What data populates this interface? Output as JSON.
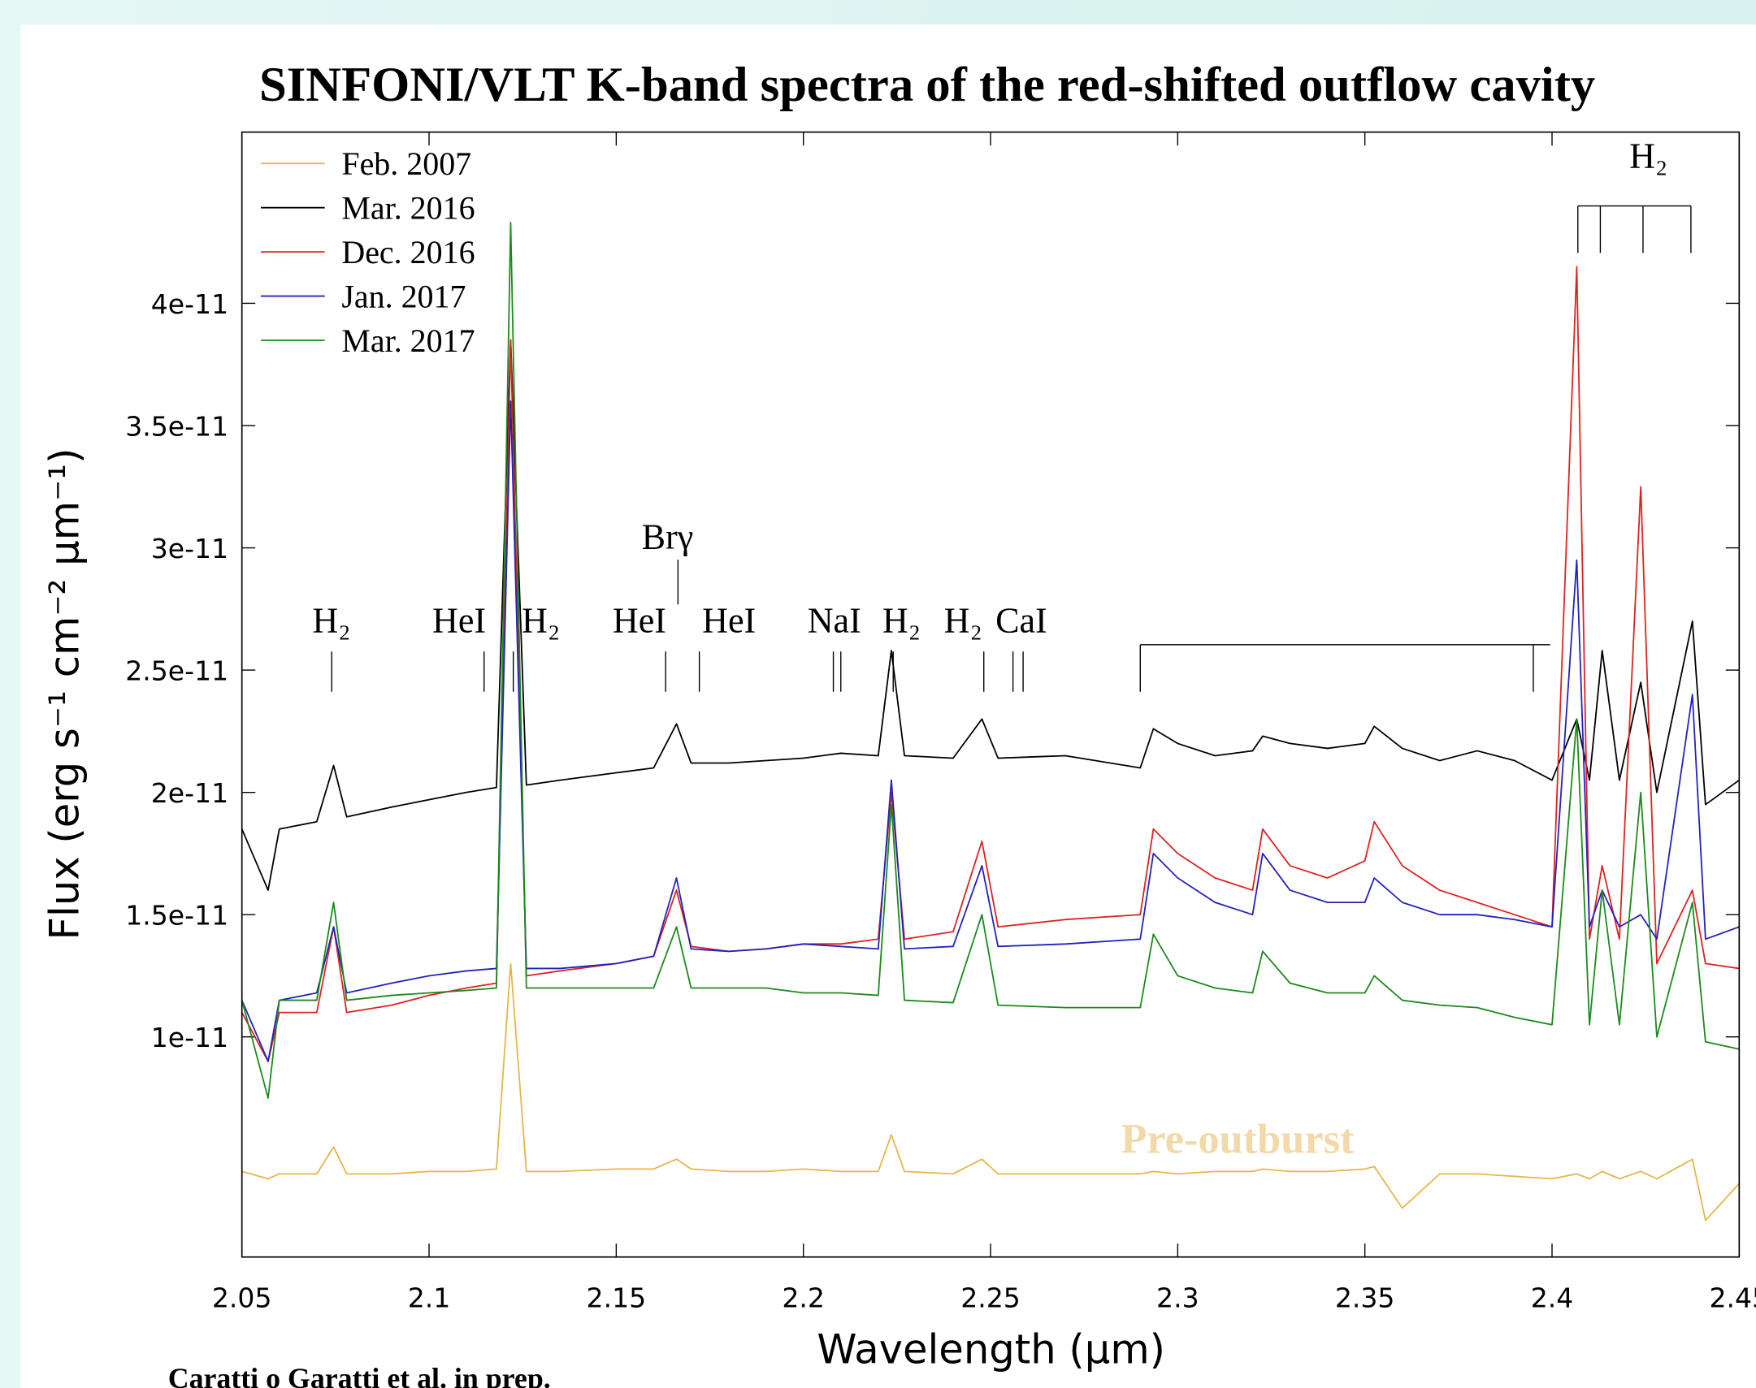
{
  "chart_data": {
    "type": "line",
    "title": "SINFONI/VLT K-band spectra of the red-shifted outflow cavity",
    "xlabel": "Wavelength (μm)",
    "ylabel": "Flux (erg s⁻¹ cm⁻² μm⁻¹)",
    "credit": "Caratti o Garatti et al. in prep.",
    "note": "Pre-outburst",
    "legend": "upper left",
    "xlim": [
      2.05,
      2.45
    ],
    "ylim": [
      1e-12,
      4.7e-11
    ],
    "xticks": [
      2.05,
      2.1,
      2.15,
      2.2,
      2.25,
      2.3,
      2.35,
      2.4,
      2.45
    ],
    "yticks": [
      1e-11,
      1.5e-11,
      2e-11,
      2.5e-11,
      3e-11,
      3.5e-11,
      4e-11
    ],
    "x": [
      2.05,
      2.057,
      2.06,
      2.07,
      2.0745,
      2.078,
      2.09,
      2.1,
      2.11,
      2.118,
      2.1218,
      2.126,
      2.135,
      2.15,
      2.16,
      2.1661,
      2.17,
      2.18,
      2.19,
      2.2,
      2.21,
      2.22,
      2.2235,
      2.227,
      2.24,
      2.2477,
      2.252,
      2.27,
      2.29,
      2.2935,
      2.3,
      2.31,
      2.32,
      2.3227,
      2.33,
      2.34,
      2.35,
      2.3525,
      2.36,
      2.37,
      2.38,
      2.39,
      2.4,
      2.4066,
      2.41,
      2.4134,
      2.418,
      2.4237,
      2.428,
      2.4375,
      2.441,
      2.45
    ],
    "series": [
      {
        "name": "Feb. 2007",
        "color": "#e6b54a",
        "values": [
          4.5e-12,
          4.2e-12,
          4.4e-12,
          4.4e-12,
          5.5e-12,
          4.4e-12,
          4.4e-12,
          4.5e-12,
          4.5e-12,
          4.6e-12,
          1.3e-11,
          4.5e-12,
          4.5e-12,
          4.6e-12,
          4.6e-12,
          5e-12,
          4.6e-12,
          4.5e-12,
          4.5e-12,
          4.6e-12,
          4.5e-12,
          4.5e-12,
          6e-12,
          4.5e-12,
          4.4e-12,
          5e-12,
          4.4e-12,
          4.4e-12,
          4.4e-12,
          4.5e-12,
          4.4e-12,
          4.5e-12,
          4.5e-12,
          4.6e-12,
          4.5e-12,
          4.5e-12,
          4.6e-12,
          4.7e-12,
          3e-12,
          4.4e-12,
          4.4e-12,
          4.3e-12,
          4.2e-12,
          4.4e-12,
          4.2e-12,
          4.5e-12,
          4.2e-12,
          4.5e-12,
          4.2e-12,
          5e-12,
          2.5e-12,
          4e-12
        ]
      },
      {
        "name": "Mar. 2016",
        "color": "#000000",
        "values": [
          1.85e-11,
          1.6e-11,
          1.85e-11,
          1.88e-11,
          2.11e-11,
          1.9e-11,
          1.94e-11,
          1.97e-11,
          2e-11,
          2.02e-11,
          3.85e-11,
          2.03e-11,
          2.05e-11,
          2.08e-11,
          2.1e-11,
          2.28e-11,
          2.12e-11,
          2.12e-11,
          2.13e-11,
          2.14e-11,
          2.16e-11,
          2.15e-11,
          2.58e-11,
          2.15e-11,
          2.14e-11,
          2.3e-11,
          2.14e-11,
          2.15e-11,
          2.1e-11,
          2.26e-11,
          2.2e-11,
          2.15e-11,
          2.17e-11,
          2.23e-11,
          2.2e-11,
          2.18e-11,
          2.2e-11,
          2.27e-11,
          2.18e-11,
          2.13e-11,
          2.17e-11,
          2.13e-11,
          2.05e-11,
          2.3e-11,
          2.05e-11,
          2.58e-11,
          2.05e-11,
          2.45e-11,
          2e-11,
          2.7e-11,
          1.95e-11,
          2.05e-11
        ]
      },
      {
        "name": "Dec. 2016",
        "color": "#dd2222",
        "values": [
          1.1e-11,
          9e-12,
          1.1e-11,
          1.1e-11,
          1.45e-11,
          1.1e-11,
          1.13e-11,
          1.17e-11,
          1.2e-11,
          1.22e-11,
          3.85e-11,
          1.25e-11,
          1.27e-11,
          1.3e-11,
          1.33e-11,
          1.6e-11,
          1.37e-11,
          1.35e-11,
          1.36e-11,
          1.38e-11,
          1.38e-11,
          1.4e-11,
          2e-11,
          1.4e-11,
          1.43e-11,
          1.8e-11,
          1.45e-11,
          1.48e-11,
          1.5e-11,
          1.85e-11,
          1.75e-11,
          1.65e-11,
          1.6e-11,
          1.85e-11,
          1.7e-11,
          1.65e-11,
          1.72e-11,
          1.88e-11,
          1.7e-11,
          1.6e-11,
          1.55e-11,
          1.5e-11,
          1.45e-11,
          4.15e-11,
          1.4e-11,
          1.7e-11,
          1.4e-11,
          3.25e-11,
          1.3e-11,
          1.6e-11,
          1.3e-11,
          1.28e-11
        ]
      },
      {
        "name": "Jan. 2017",
        "color": "#2222bb",
        "values": [
          1.15e-11,
          9e-12,
          1.15e-11,
          1.18e-11,
          1.45e-11,
          1.18e-11,
          1.22e-11,
          1.25e-11,
          1.27e-11,
          1.28e-11,
          3.6e-11,
          1.28e-11,
          1.28e-11,
          1.3e-11,
          1.33e-11,
          1.65e-11,
          1.36e-11,
          1.35e-11,
          1.36e-11,
          1.38e-11,
          1.37e-11,
          1.36e-11,
          2.05e-11,
          1.36e-11,
          1.37e-11,
          1.7e-11,
          1.37e-11,
          1.38e-11,
          1.4e-11,
          1.75e-11,
          1.65e-11,
          1.55e-11,
          1.5e-11,
          1.75e-11,
          1.6e-11,
          1.55e-11,
          1.55e-11,
          1.65e-11,
          1.55e-11,
          1.5e-11,
          1.5e-11,
          1.48e-11,
          1.45e-11,
          2.95e-11,
          1.45e-11,
          1.6e-11,
          1.45e-11,
          1.5e-11,
          1.4e-11,
          2.4e-11,
          1.4e-11,
          1.45e-11
        ]
      },
      {
        "name": "Mar. 2017",
        "color": "#1b8a1b",
        "values": [
          1.15e-11,
          7.5e-12,
          1.15e-11,
          1.15e-11,
          1.55e-11,
          1.15e-11,
          1.17e-11,
          1.18e-11,
          1.19e-11,
          1.2e-11,
          4.33e-11,
          1.2e-11,
          1.2e-11,
          1.2e-11,
          1.2e-11,
          1.45e-11,
          1.2e-11,
          1.2e-11,
          1.2e-11,
          1.18e-11,
          1.18e-11,
          1.17e-11,
          1.95e-11,
          1.15e-11,
          1.14e-11,
          1.5e-11,
          1.13e-11,
          1.12e-11,
          1.12e-11,
          1.42e-11,
          1.25e-11,
          1.2e-11,
          1.18e-11,
          1.35e-11,
          1.22e-11,
          1.18e-11,
          1.18e-11,
          1.25e-11,
          1.15e-11,
          1.13e-11,
          1.12e-11,
          1.08e-11,
          1.05e-11,
          2.3e-11,
          1.05e-11,
          1.6e-11,
          1.05e-11,
          2e-11,
          1e-11,
          1.55e-11,
          9.8e-12,
          9.5e-12
        ]
      }
    ],
    "annotations": [
      {
        "text": "H₂",
        "x": [
          2.074
        ]
      },
      {
        "text": "HeI",
        "x": [
          2.1147
        ]
      },
      {
        "text": "H₂",
        "x": [
          2.1225
        ]
      },
      {
        "text": "HeI",
        "x": [
          2.1632
        ]
      },
      {
        "text": "Brγ",
        "x": [
          2.1665
        ]
      },
      {
        "text": "HeI",
        "x": [
          2.1722
        ]
      },
      {
        "text": "NaI",
        "x": [
          2.208,
          2.21
        ]
      },
      {
        "text": "H₂",
        "x": [
          2.224
        ]
      },
      {
        "text": "H₂",
        "x": [
          2.2482
        ]
      },
      {
        "text": "CaI",
        "x": [
          2.256,
          2.2587
        ]
      },
      {
        "x": [
          2.29,
          2.395
        ]
      },
      {
        "text": "H₂",
        "x": [
          2.4069,
          2.4129,
          2.4243,
          2.4371
        ]
      }
    ]
  }
}
